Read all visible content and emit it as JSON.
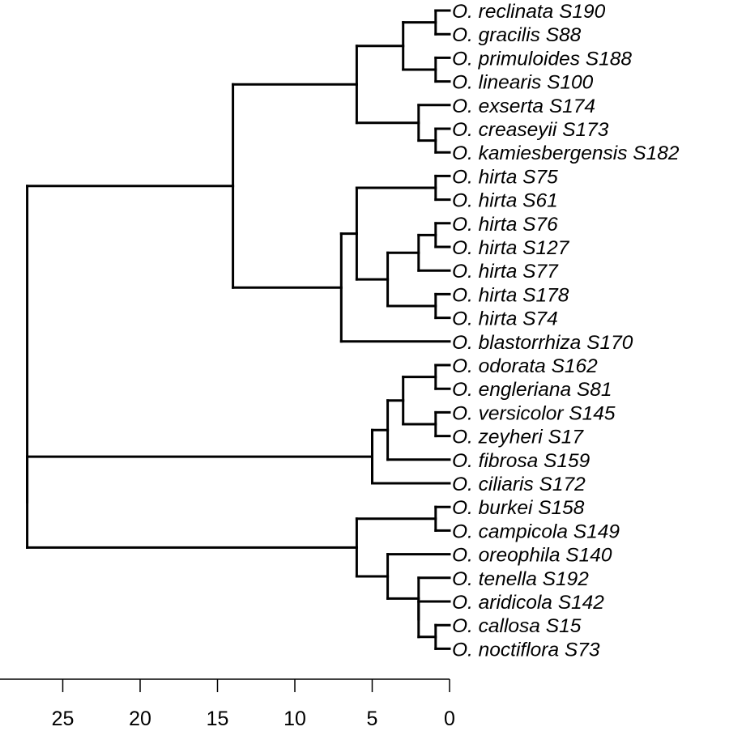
{
  "chart_data": {
    "type": "dendrogram",
    "axis": {
      "reversed": true,
      "range": [
        28.5,
        0
      ],
      "ticks": [
        25,
        20,
        15,
        10,
        5,
        0
      ]
    },
    "tree": {
      "h": 27.3,
      "children": [
        {
          "h": 14.0,
          "children": [
            {
              "h": 6.0,
              "children": [
                {
                  "h": 3.0,
                  "children": [
                    {
                      "h": 0.9,
                      "children": [
                        {
                          "label": "O. reclinata S190"
                        },
                        {
                          "label": "O. gracilis S88"
                        }
                      ]
                    },
                    {
                      "h": 0.9,
                      "children": [
                        {
                          "label": "O. primuloides S188"
                        },
                        {
                          "label": "O. linearis S100"
                        }
                      ]
                    }
                  ]
                },
                {
                  "h": 2.0,
                  "children": [
                    {
                      "label": "O. exserta S174"
                    },
                    {
                      "h": 0.9,
                      "children": [
                        {
                          "label": "O. creaseyii S173"
                        },
                        {
                          "label": "O. kamiesbergensis S182"
                        }
                      ]
                    }
                  ]
                }
              ]
            },
            {
              "h": 7.0,
              "children": [
                {
                  "h": 6.0,
                  "children": [
                    {
                      "h": 0.9,
                      "children": [
                        {
                          "label": "O. hirta S75"
                        },
                        {
                          "label": "O. hirta S61"
                        }
                      ]
                    },
                    {
                      "h": 4.0,
                      "children": [
                        {
                          "h": 2.0,
                          "children": [
                            {
                              "h": 0.9,
                              "children": [
                                {
                                  "label": "O. hirta S76"
                                },
                                {
                                  "label": "O. hirta S127"
                                }
                              ]
                            },
                            {
                              "label": "O. hirta S77"
                            }
                          ]
                        },
                        {
                          "h": 0.9,
                          "children": [
                            {
                              "label": "O. hirta S178"
                            },
                            {
                              "label": "O. hirta S74"
                            }
                          ]
                        }
                      ]
                    }
                  ]
                },
                {
                  "label": "O. blastorrhiza S170"
                }
              ]
            }
          ]
        },
        {
          "h": 27.3,
          "children": [
            {
              "h": 5.0,
              "children": [
                {
                  "h": 4.0,
                  "children": [
                    {
                      "h": 3.0,
                      "children": [
                        {
                          "h": 0.9,
                          "children": [
                            {
                              "label": "O. odorata S162"
                            },
                            {
                              "label": "O. engleriana S81"
                            }
                          ]
                        },
                        {
                          "h": 0.9,
                          "children": [
                            {
                              "label": "O. versicolor S145"
                            },
                            {
                              "label": "O. zeyheri S17"
                            }
                          ]
                        }
                      ]
                    },
                    {
                      "label": "O. fibrosa S159"
                    }
                  ]
                },
                {
                  "label": "O. ciliaris S172"
                }
              ]
            },
            {
              "h": 6.0,
              "children": [
                {
                  "h": 0.9,
                  "children": [
                    {
                      "label": "O. burkei S158"
                    },
                    {
                      "label": "O. campicola S149"
                    }
                  ]
                },
                {
                  "h": 4.0,
                  "children": [
                    {
                      "label": "O. oreophila S140"
                    },
                    {
                      "h": 2.0,
                      "children": [
                        {
                          "label": "O. tenella S192"
                        },
                        {
                          "h": 2.0,
                          "children": [
                            {
                              "label": "O. aridicola S142"
                            },
                            {
                              "h": 0.9,
                              "children": [
                                {
                                  "label": "O. callosa S15"
                                },
                                {
                                  "label": "O. noctiflora S73"
                                }
                              ]
                            }
                          ]
                        }
                      ]
                    }
                  ]
                }
              ]
            }
          ]
        }
      ]
    }
  }
}
